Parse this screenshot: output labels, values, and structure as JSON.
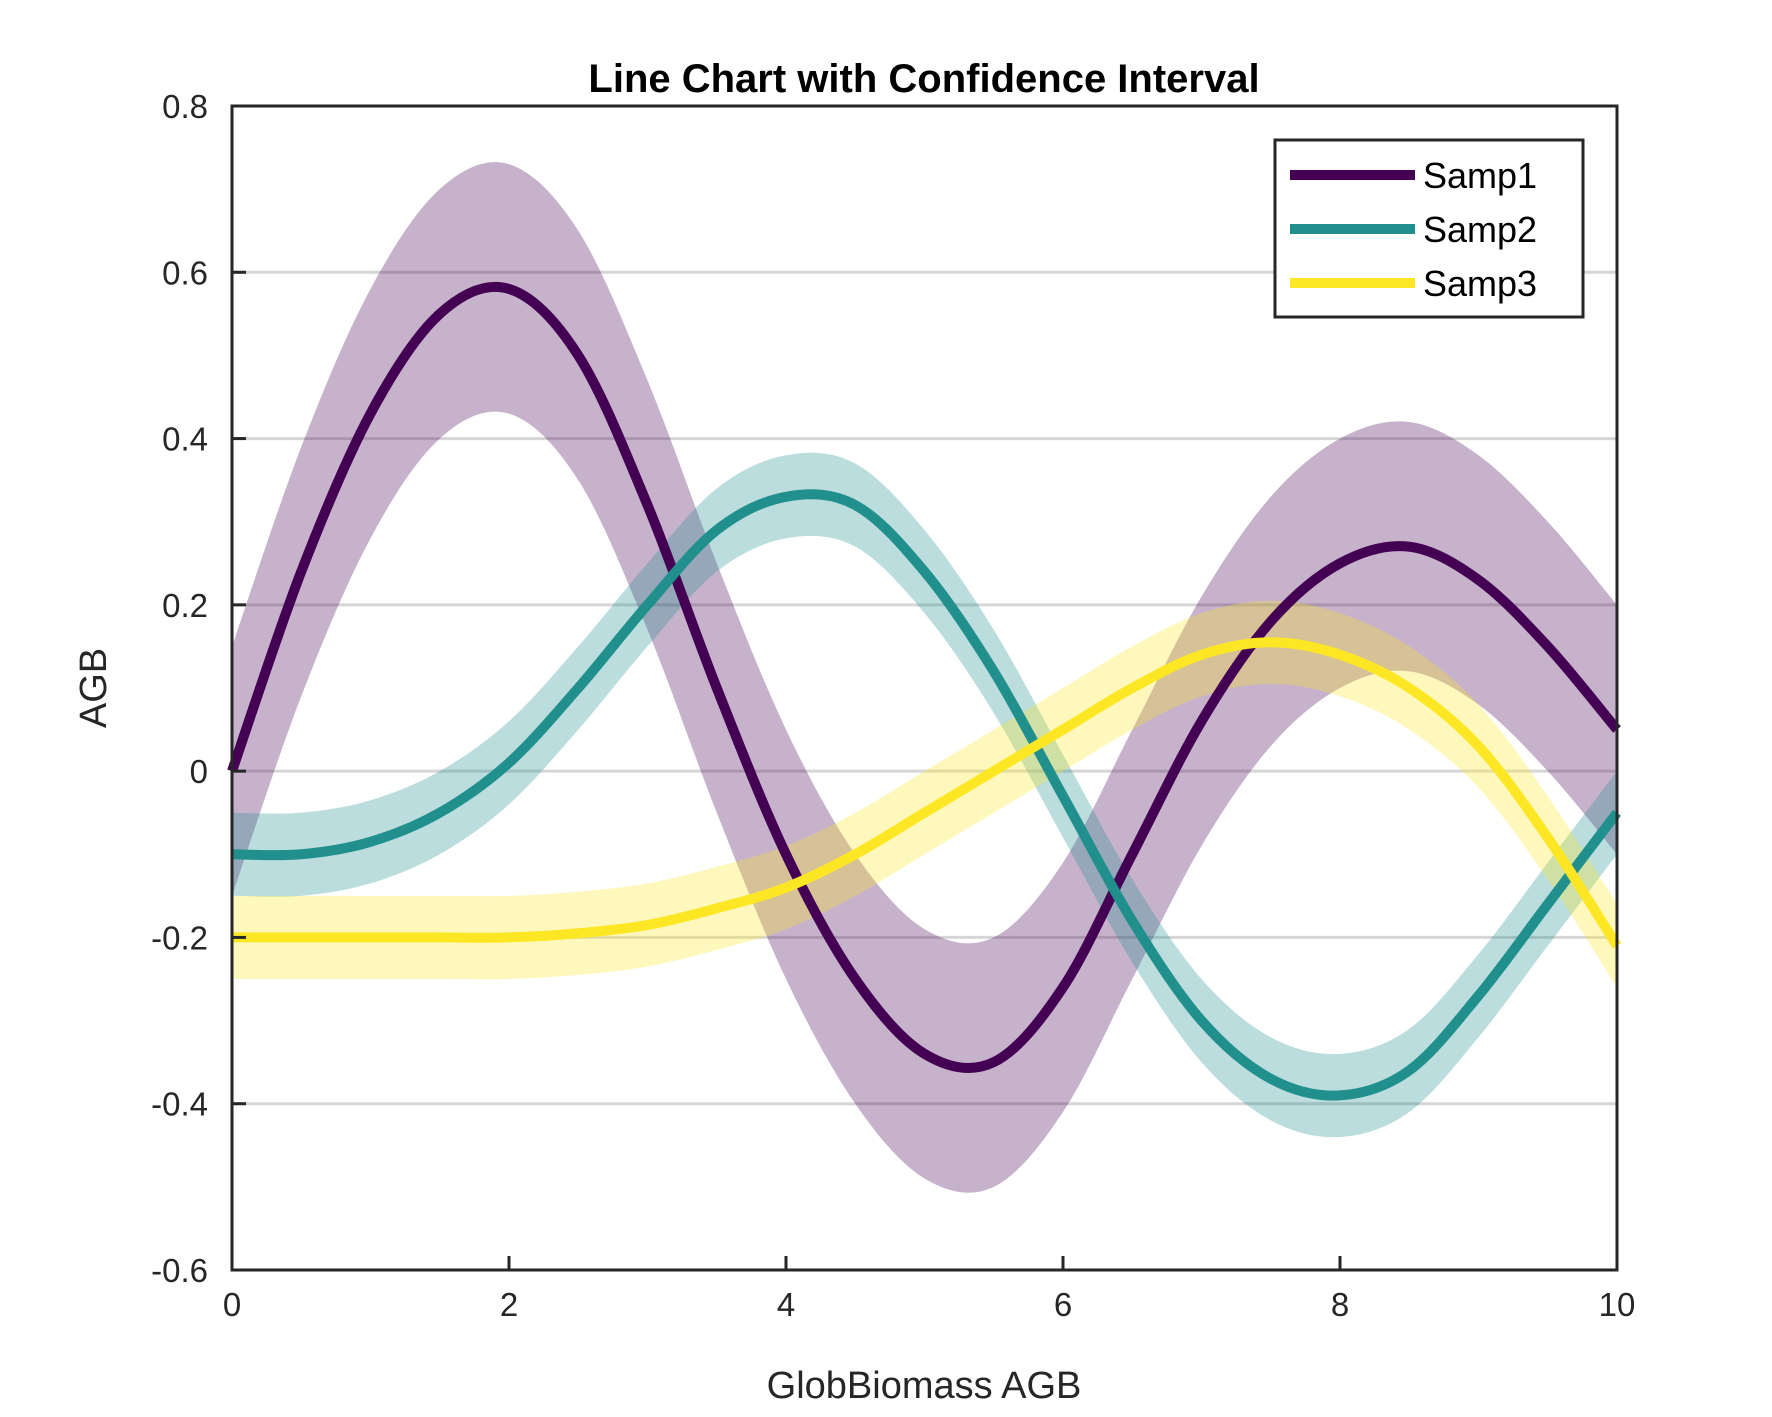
{
  "chart_data": {
    "type": "line",
    "title": "Line Chart with Confidence Interval",
    "xlabel": "GlobBiomass AGB",
    "ylabel": "AGB",
    "xlim": [
      0,
      10
    ],
    "ylim": [
      -0.6,
      0.8
    ],
    "x_ticks": [
      0,
      2,
      4,
      6,
      8,
      10
    ],
    "x_tick_labels": [
      "0",
      "2",
      "4",
      "6",
      "8",
      "10"
    ],
    "y_ticks": [
      -0.6,
      -0.4,
      -0.2,
      0,
      0.2,
      0.4,
      0.6,
      0.8
    ],
    "y_tick_labels": [
      "-0.6",
      "-0.4",
      "-0.2",
      "0",
      "0.2",
      "0.4",
      "0.6",
      "0.8"
    ],
    "grid": "horizontal",
    "legend_position": "top-right",
    "band_opacity": 0.3,
    "series": [
      {
        "name": "Samp1",
        "color": "#440154",
        "x": [
          0,
          0.5,
          1,
          1.5,
          2,
          2.5,
          3,
          3.5,
          4,
          4.5,
          5,
          5.5,
          6,
          6.5,
          7,
          7.5,
          8,
          8.5,
          9,
          9.5,
          10
        ],
        "y": [
          0,
          0.24,
          0.43,
          0.55,
          0.58,
          0.5,
          0.32,
          0.1,
          -0.1,
          -0.25,
          -0.34,
          -0.35,
          -0.26,
          -0.1,
          0.06,
          0.18,
          0.25,
          0.27,
          0.23,
          0.15,
          0.05
        ],
        "ci": 0.15
      },
      {
        "name": "Samp2",
        "color": "#21908d",
        "x": [
          0,
          0.5,
          1,
          1.5,
          2,
          2.5,
          3,
          3.5,
          4,
          4.5,
          5,
          5.5,
          6,
          6.5,
          7,
          7.5,
          8,
          8.5,
          9,
          9.5,
          10
        ],
        "y": [
          -0.1,
          -0.1,
          -0.085,
          -0.05,
          0.01,
          0.1,
          0.2,
          0.29,
          0.33,
          0.32,
          0.24,
          0.12,
          -0.03,
          -0.18,
          -0.3,
          -0.37,
          -0.39,
          -0.36,
          -0.27,
          -0.16,
          -0.05
        ],
        "ci": 0.05
      },
      {
        "name": "Samp3",
        "color": "#fde725",
        "x": [
          0,
          0.5,
          1,
          1.5,
          2,
          2.5,
          3,
          3.5,
          4,
          4.5,
          5,
          5.5,
          6,
          6.5,
          7,
          7.5,
          8,
          8.5,
          9,
          9.5,
          10
        ],
        "y": [
          -0.2,
          -0.2,
          -0.2,
          -0.2,
          -0.2,
          -0.195,
          -0.185,
          -0.165,
          -0.14,
          -0.1,
          -0.05,
          0.0,
          0.05,
          0.1,
          0.14,
          0.155,
          0.14,
          0.1,
          0.03,
          -0.08,
          -0.21
        ],
        "ci": 0.05
      }
    ]
  }
}
